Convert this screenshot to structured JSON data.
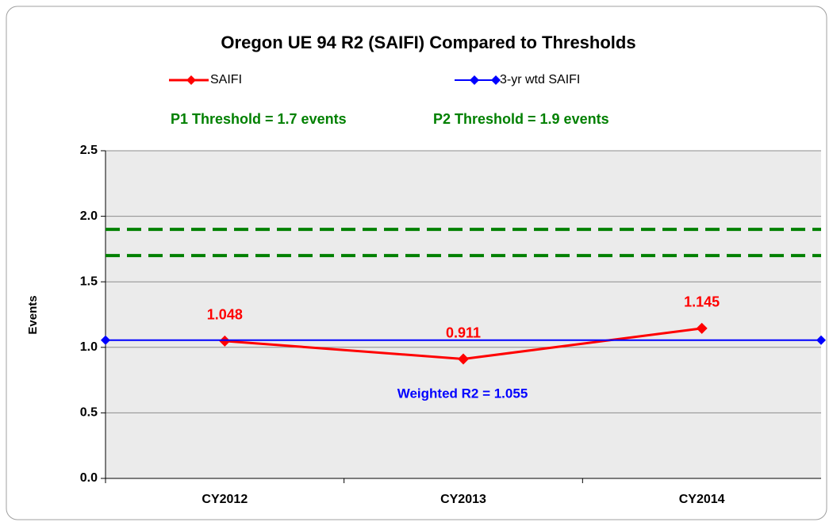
{
  "chart_data": {
    "type": "line",
    "title": "Oregon UE 94 R2 (SAIFI) Compared to Thresholds",
    "y_label": "Events",
    "categories": [
      "CY2012",
      "CY2013",
      "CY2014"
    ],
    "series": [
      {
        "name": "SAIFI",
        "color": "#ff0000",
        "values": [
          1.048,
          0.911,
          1.145
        ]
      },
      {
        "name": "3-yr wtd SAIFI",
        "color": "#0000ff",
        "value": 1.055
      }
    ],
    "thresholds": [
      {
        "label": "P1 Threshold = 1.7 events",
        "value": 1.7,
        "color": "#008000"
      },
      {
        "label": "P2 Threshold = 1.9 events",
        "value": 1.9,
        "color": "#008000"
      }
    ],
    "annotations": [
      {
        "text": "Weighted R2 = 1.055",
        "color": "#0000ff"
      }
    ],
    "ylim": [
      0,
      2.5
    ],
    "yticks": [
      {
        "value": 0,
        "label": "0.0"
      },
      {
        "value": 0.5,
        "label": "0.5"
      },
      {
        "value": 1,
        "label": "1.0"
      },
      {
        "value": 1.5,
        "label": "1.5"
      },
      {
        "value": 2,
        "label": "2.0"
      },
      {
        "value": 2.5,
        "label": "2.5"
      }
    ],
    "grid": true
  }
}
